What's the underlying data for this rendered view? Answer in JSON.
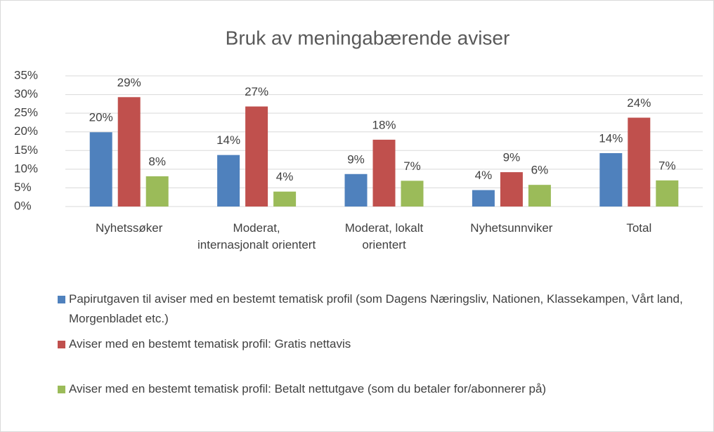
{
  "chart_data": {
    "type": "bar",
    "title": "Bruk av meningabærende aviser",
    "categories": [
      "Nyhetssøker",
      "Moderat, internasjonalt orientert",
      "Moderat, lokalt orientert",
      "Nyhetsunnviker",
      "Total"
    ],
    "series": [
      {
        "name": "Papirutgaven til aviser med en bestemt tematisk profil (som Dagens Næringsliv, Nationen, Klassekampen, Vårt land, Morgenbladet etc.)",
        "color": "#4f81bd",
        "values": [
          19.9,
          13.8,
          8.7,
          4.4,
          14.3
        ],
        "value_labels": [
          "20%",
          "14%",
          "9%",
          "4%",
          "14%"
        ]
      },
      {
        "name": "Aviser med en bestemt tematisk profil: Gratis nettavis",
        "color": "#c0504d",
        "values": [
          29.3,
          26.8,
          17.9,
          9.2,
          23.8
        ],
        "value_labels": [
          "29%",
          "27%",
          "18%",
          "9%",
          "24%"
        ]
      },
      {
        "name": "Aviser med en bestemt tematisk profil: Betalt nettutgave (som du betaler for/abonnerer på)",
        "color": "#9bbb59",
        "values": [
          8.1,
          4.0,
          6.9,
          5.8,
          7.0
        ],
        "value_labels": [
          "8%",
          "4%",
          "7%",
          "6%",
          "7%"
        ]
      }
    ],
    "ylim": [
      0,
      35
    ],
    "yticks": [
      {
        "value": 0,
        "label": "0%"
      },
      {
        "value": 5,
        "label": "5%"
      },
      {
        "value": 10,
        "label": "10%"
      },
      {
        "value": 15,
        "label": "15%"
      },
      {
        "value": 20,
        "label": "20%"
      },
      {
        "value": 25,
        "label": "25%"
      },
      {
        "value": 30,
        "label": "30%"
      },
      {
        "value": 35,
        "label": "35%"
      }
    ],
    "grid": true,
    "legend": "bottom"
  }
}
